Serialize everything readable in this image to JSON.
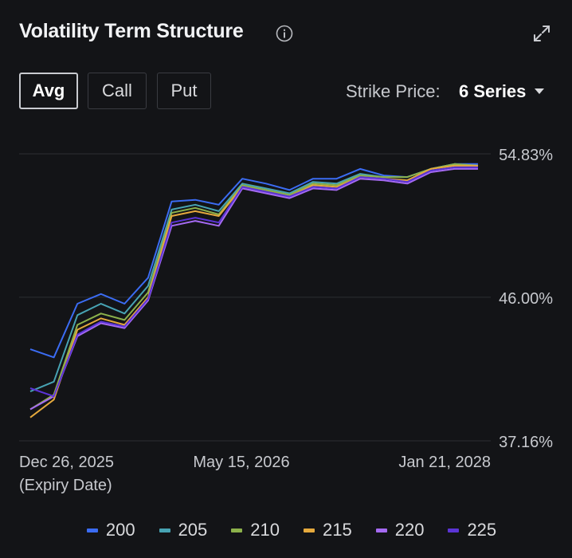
{
  "header": {
    "title": "Volatility Term Structure",
    "info_icon": "info-icon",
    "expand_icon": "expand-icon"
  },
  "tabs": [
    {
      "label": "Avg",
      "active": true
    },
    {
      "label": "Call",
      "active": false
    },
    {
      "label": "Put",
      "active": false
    }
  ],
  "strike": {
    "label": "Strike Price:",
    "value": "6 Series",
    "caret_icon": "caret-down-icon"
  },
  "chart_data": {
    "type": "line",
    "title": "Volatility Term Structure",
    "xlabel": "(Expiry Date)",
    "ylabel": "",
    "ylim": [
      37.16,
      54.83
    ],
    "y_tick_labels": [
      "54.83%",
      "46.00%",
      "37.16%"
    ],
    "y_tick_values": [
      54.83,
      46.0,
      37.16
    ],
    "x_tick_labels": [
      "Dec 26, 2025",
      "May 15, 2026",
      "Jan 21, 2028"
    ],
    "x_tick_index": [
      0,
      8,
      19
    ],
    "grid": true,
    "legend_position": "bottom",
    "x": [
      "1",
      "2",
      "3",
      "4",
      "5",
      "6",
      "7",
      "8",
      "9",
      "10",
      "11",
      "12",
      "13",
      "14",
      "15",
      "16",
      "17",
      "18",
      "19",
      "20"
    ],
    "series": [
      {
        "name": "200",
        "color": "#3b6cf3",
        "values": [
          42.8,
          42.3,
          45.6,
          46.2,
          45.6,
          47.2,
          51.9,
          52.0,
          51.7,
          53.3,
          53.0,
          52.6,
          53.3,
          53.3,
          53.9,
          53.5,
          53.4,
          53.9,
          54.2,
          54.2
        ]
      },
      {
        "name": "205",
        "color": "#47a3b3",
        "values": [
          40.2,
          40.8,
          44.9,
          45.6,
          45.0,
          46.7,
          51.4,
          51.7,
          51.3,
          53.0,
          52.7,
          52.4,
          53.1,
          53.0,
          53.6,
          53.4,
          53.4,
          53.9,
          54.2,
          54.1
        ]
      },
      {
        "name": "210",
        "color": "#8cb14b",
        "values": [
          39.1,
          40.0,
          44.3,
          45.0,
          44.6,
          46.3,
          51.2,
          51.5,
          51.1,
          52.9,
          52.6,
          52.3,
          53.0,
          52.9,
          53.5,
          53.4,
          53.4,
          53.9,
          54.2,
          54.1
        ]
      },
      {
        "name": "215",
        "color": "#e5a93d",
        "values": [
          38.6,
          39.7,
          44.0,
          44.7,
          44.3,
          46.0,
          51.0,
          51.3,
          51.0,
          52.8,
          52.5,
          52.2,
          52.9,
          52.8,
          53.4,
          53.3,
          53.2,
          53.9,
          54.1,
          54.1
        ]
      },
      {
        "name": "220",
        "color": "#a56af2",
        "values": [
          39.1,
          39.9,
          43.6,
          44.4,
          44.1,
          45.8,
          50.4,
          50.7,
          50.4,
          52.7,
          52.4,
          52.1,
          52.7,
          52.6,
          53.3,
          53.2,
          53.0,
          53.7,
          53.9,
          53.9
        ]
      },
      {
        "name": "225",
        "color": "#5b34d6",
        "values": [
          40.4,
          39.9,
          43.7,
          44.5,
          44.2,
          45.9,
          50.6,
          50.9,
          50.6,
          52.8,
          52.5,
          52.2,
          52.8,
          52.7,
          53.4,
          53.3,
          53.1,
          53.8,
          54.0,
          54.0
        ]
      }
    ]
  }
}
